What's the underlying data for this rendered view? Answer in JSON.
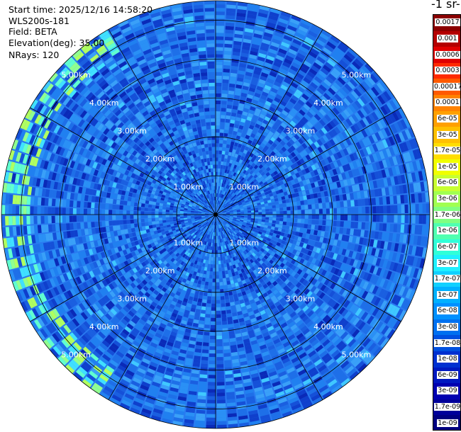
{
  "header": {
    "start_time": "Start time: 2025/12/16 14:58:20",
    "instrument": "WLS200s-181",
    "field": "Field: BETA",
    "elevation": "Elevation(deg): 35.00",
    "nrays": "NRays: 120"
  },
  "colorbar": {
    "title": "-1 sr-",
    "labels": [
      "0.0017",
      "0.001",
      "0.0006",
      "0.0003",
      "0.00017",
      "0.0001",
      "6e-05",
      "3e-05",
      "1.7e-05",
      "1e-05",
      "6e-06",
      "3e-06",
      "1.7e-06",
      "1e-06",
      "6e-07",
      "3e-07",
      "1.7e-07",
      "1e-07",
      "6e-08",
      "3e-08",
      "1.7e-08",
      "1e-08",
      "6e-09",
      "3e-09",
      "1.7e-09",
      "1e-09"
    ],
    "colors": [
      "#8b0000",
      "#b40000",
      "#e00000",
      "#ff2a00",
      "#ff5a00",
      "#ff8200",
      "#ffa000",
      "#ffc000",
      "#ffde00",
      "#f0ff00",
      "#c8ff30",
      "#a0ff50",
      "#80ff80",
      "#50ffb0",
      "#30ffd8",
      "#20f0ff",
      "#10d0ff",
      "#00b0ff",
      "#0090ff",
      "#0070f0",
      "#0050e0",
      "#0030d0",
      "#0018c0",
      "#0000b0",
      "#00009a",
      "#000080"
    ]
  },
  "chart_data": {
    "type": "heatmap",
    "projection": "polar PPI",
    "field": "BETA",
    "elevation_deg": 35.0,
    "nrays": 120,
    "range_rings_km": [
      1,
      2,
      3,
      4,
      5
    ],
    "ring_labels": [
      "1.00km",
      "2.00km",
      "3.00km",
      "4.00km",
      "5.00km"
    ],
    "max_range_km": 5.5,
    "azimuth_spokes_deg": [
      0,
      30,
      60,
      90,
      120,
      150,
      180,
      210,
      240,
      270,
      300,
      330
    ],
    "color_scale": "log",
    "value_range": [
      1e-09,
      0.0017
    ],
    "dominant_value": "1e-07",
    "notes_values": {
      "enhanced_ring_range_km": [
        4.7,
        5.5
      ],
      "enhanced_azimuth_deg": [
        210,
        330
      ]
    }
  }
}
